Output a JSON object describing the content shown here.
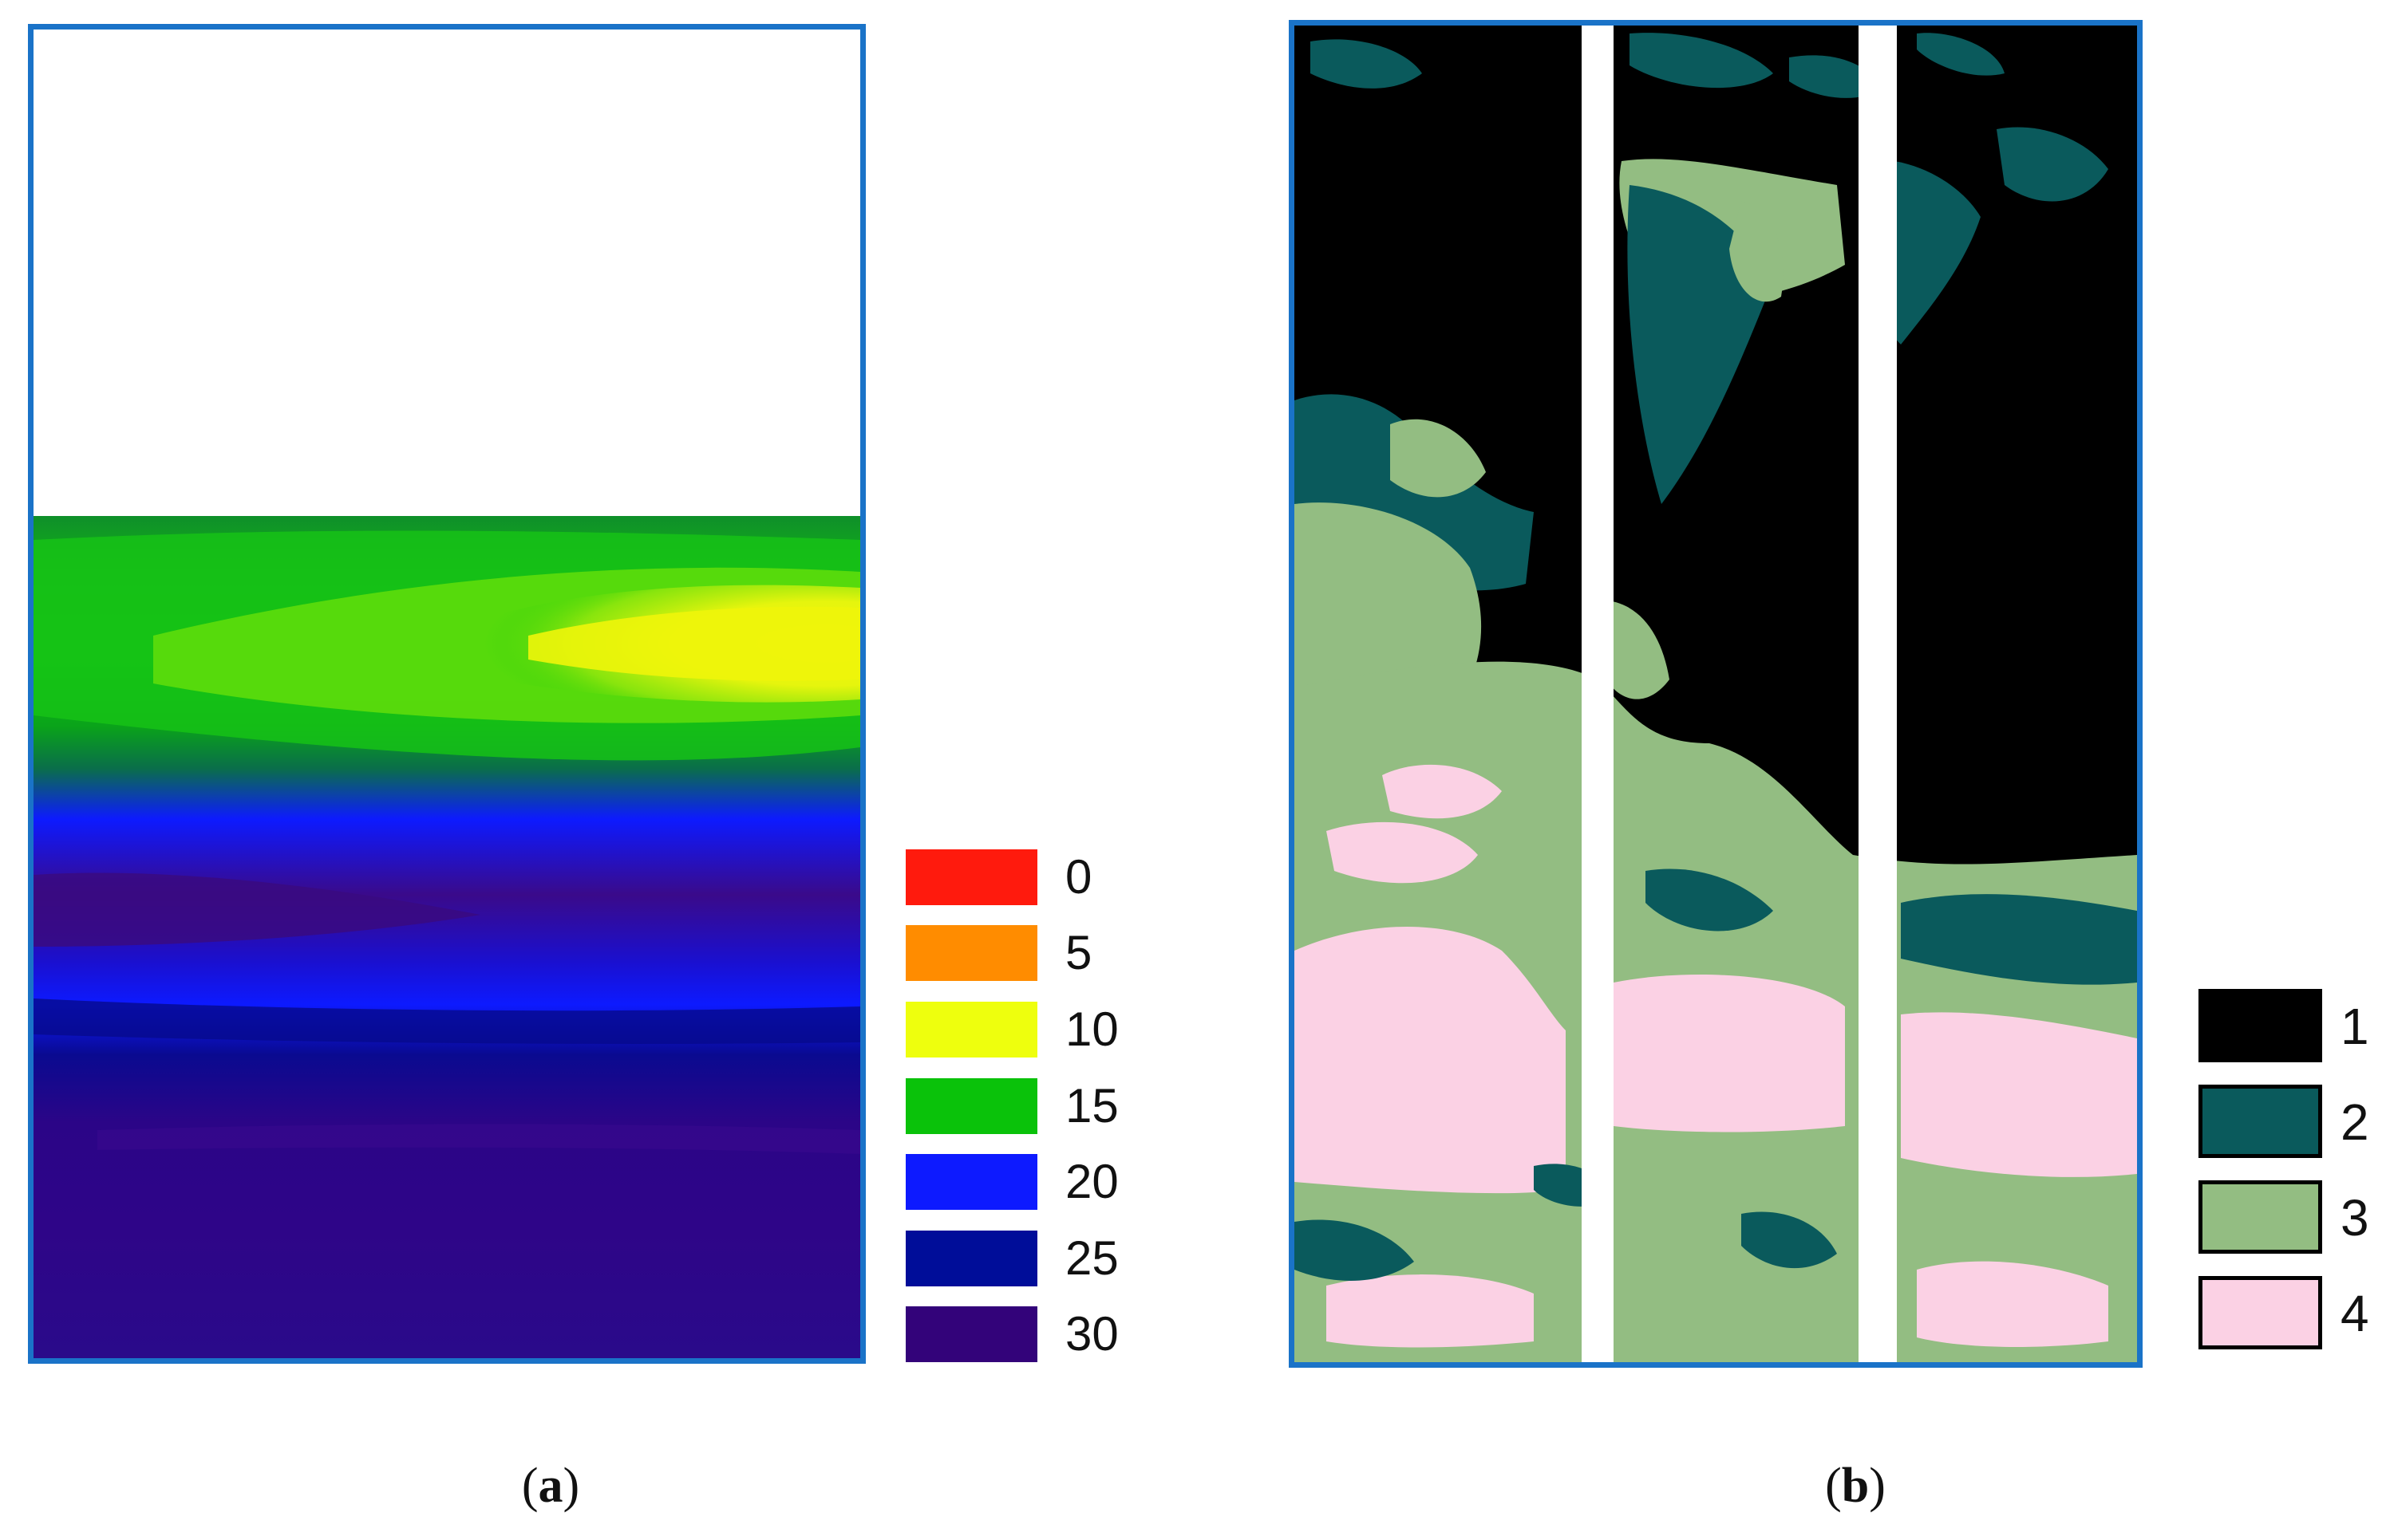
{
  "panel_a": {
    "caption_open": "(",
    "caption_letter": "a",
    "caption_close": ")",
    "legend": [
      {
        "label": "0",
        "color": "#ff1a0d"
      },
      {
        "label": "5",
        "color": "#ff8c00"
      },
      {
        "label": "10",
        "color": "#eeff0d"
      },
      {
        "label": "15",
        "color": "#0ac20a"
      },
      {
        "label": "20",
        "color": "#0d1aff"
      },
      {
        "label": "25",
        "color": "#000d99"
      },
      {
        "label": "30",
        "color": "#33037a"
      }
    ]
  },
  "panel_b": {
    "caption_open": "(",
    "caption_letter": "b",
    "caption_close": ")",
    "legend": [
      {
        "label": "1",
        "color": "#000000"
      },
      {
        "label": "2",
        "color": "#0a5a5c"
      },
      {
        "label": "3",
        "color": "#93bd82"
      },
      {
        "label": "4",
        "color": "#fbd1e4"
      }
    ]
  },
  "colors": {
    "frame_border": "#1a73c8"
  }
}
